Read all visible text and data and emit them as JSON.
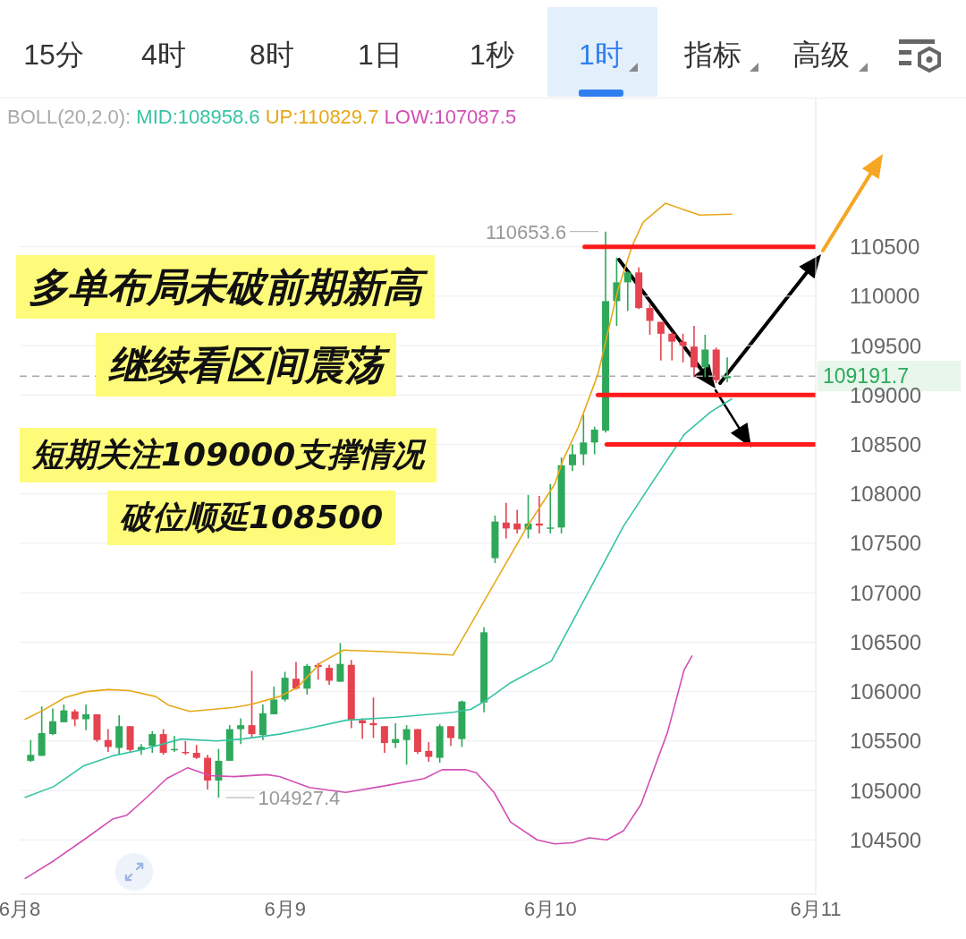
{
  "chart_data": {
    "type": "candlestick",
    "x": [
      "--06-08T01:00",
      "--06-08T02:00",
      "--06-08T03:00",
      "--06-08T04:00",
      "--06-08T05:00",
      "--06-08T06:00",
      "--06-08T07:00",
      "--06-08T08:00",
      "--06-08T09:00",
      "--06-08T10:00",
      "--06-08T11:00",
      "--06-08T12:00",
      "--06-08T13:00",
      "--06-08T14:00",
      "--06-08T15:00",
      "--06-08T16:00",
      "--06-08T17:00",
      "--06-08T18:00",
      "--06-08T19:00",
      "--06-08T20:00",
      "--06-08T21:00",
      "--06-08T22:00",
      "--06-08T23:00",
      "--06-09T00:00",
      "--06-09T01:00",
      "--06-09T02:00",
      "--06-09T03:00",
      "--06-09T04:00",
      "--06-09T05:00",
      "--06-09T06:00",
      "--06-09T07:00",
      "--06-09T08:00",
      "--06-09T09:00",
      "--06-09T10:00",
      "--06-09T11:00",
      "--06-09T12:00",
      "--06-09T13:00",
      "--06-09T14:00",
      "--06-09T15:00",
      "--06-09T16:00",
      "--06-09T18:00",
      "--06-09T19:00",
      "--06-09T20:00",
      "--06-09T21:00",
      "--06-09T22:00",
      "--06-09T23:00",
      "--06-10T00:00",
      "--06-10T01:00",
      "--06-10T02:00",
      "--06-10T03:00",
      "--06-10T04:00",
      "--06-10T05:00",
      "--06-10T06:00",
      "--06-10T07:00",
      "--06-10T08:00",
      "--06-10T09:00",
      "--06-10T10:00",
      "--06-10T11:00",
      "--06-10T12:00",
      "--06-10T13:00",
      "--06-10T14:00",
      "--06-10T15:00",
      "--06-10T16:00"
    ],
    "ohlc": [
      [
        105300,
        105510,
        105290,
        105360
      ],
      [
        105350,
        105850,
        105350,
        105580
      ],
      [
        105570,
        105830,
        105560,
        105700
      ],
      [
        105690,
        105870,
        105690,
        105810
      ],
      [
        105800,
        105820,
        105650,
        105720
      ],
      [
        105720,
        105870,
        105610,
        105770
      ],
      [
        105770,
        105770,
        105490,
        105510
      ],
      [
        105510,
        105620,
        105390,
        105440
      ],
      [
        105430,
        105760,
        105360,
        105650
      ],
      [
        105650,
        105650,
        105390,
        105410
      ],
      [
        105410,
        105470,
        105360,
        105440
      ],
      [
        105450,
        105600,
        105380,
        105570
      ],
      [
        105570,
        105620,
        105360,
        105380
      ],
      [
        105410,
        105550,
        105390,
        105420
      ],
      [
        105390,
        105500,
        105360,
        105380
      ],
      [
        105380,
        105460,
        105320,
        105330
      ],
      [
        105330,
        105360,
        105010,
        105100
      ],
      [
        105100,
        105420,
        104927.4,
        105300
      ],
      [
        105300,
        105660,
        105300,
        105620
      ],
      [
        105620,
        105730,
        105470,
        105660
      ],
      [
        105660,
        106210,
        105530,
        105570
      ],
      [
        105560,
        105870,
        105510,
        105780
      ],
      [
        105770,
        106050,
        105770,
        105920
      ],
      [
        105920,
        106200,
        105900,
        106140
      ],
      [
        106130,
        106300,
        106020,
        106030
      ],
      [
        106030,
        106280,
        105970,
        106260
      ],
      [
        106270,
        106290,
        106120,
        106250
      ],
      [
        106240,
        106270,
        106070,
        106110
      ],
      [
        106100,
        106490,
        106100,
        106280
      ],
      [
        106270,
        106320,
        105630,
        105710
      ],
      [
        105710,
        105730,
        105520,
        105680
      ],
      [
        105680,
        105940,
        105530,
        105660
      ],
      [
        105650,
        105650,
        105380,
        105480
      ],
      [
        105480,
        105680,
        105430,
        105520
      ],
      [
        105510,
        105660,
        105260,
        105620
      ],
      [
        105620,
        105620,
        105370,
        105390
      ],
      [
        105400,
        105490,
        105290,
        105340
      ],
      [
        105330,
        105670,
        105280,
        105650
      ],
      [
        105650,
        105650,
        105450,
        105530
      ],
      [
        105520,
        105910,
        105440,
        105900
      ],
      [
        105890,
        106650,
        105790,
        106600
      ],
      [
        107350,
        107780,
        107300,
        107720
      ],
      [
        107710,
        107910,
        107550,
        107650
      ],
      [
        107700,
        107840,
        107600,
        107640
      ],
      [
        107640,
        107990,
        107550,
        107700
      ],
      [
        107700,
        107980,
        107600,
        107680
      ],
      [
        107650,
        108100,
        107600,
        107660
      ],
      [
        107660,
        108370,
        107600,
        108290
      ],
      [
        108290,
        108500,
        108230,
        108400
      ],
      [
        108400,
        108800,
        108290,
        108520
      ],
      [
        108520,
        108680,
        108400,
        108650
      ],
      [
        108640,
        110653.6,
        108620,
        109950
      ],
      [
        109950,
        110390,
        109700,
        110140
      ],
      [
        110140,
        110250,
        109850,
        110240
      ],
      [
        110240,
        110290,
        109870,
        109880
      ],
      [
        109880,
        109920,
        109610,
        109750
      ],
      [
        109740,
        109740,
        109350,
        109620
      ],
      [
        109620,
        109640,
        109350,
        109540
      ],
      [
        109540,
        109620,
        109330,
        109500
      ],
      [
        109490,
        109700,
        109180,
        109280
      ],
      [
        109280,
        109610,
        109180,
        109460
      ],
      [
        109460,
        109480,
        109120,
        109150
      ],
      [
        109170,
        109380,
        109130,
        109191.7
      ]
    ],
    "series": [
      {
        "type": "line",
        "color": "#e6a817",
        "x": [
          "--06-08T00:30",
          "--06-08T02:06",
          "--06-08T04:06",
          "--06-08T06:00",
          "--06-08T08:00",
          "--06-08T09:54",
          "--06-08T12:18",
          "--06-08T13:30",
          "--06-08T15:24",
          "--06-08T17:24",
          "--06-08T19:24",
          "--06-08T20:54",
          "--06-08T23:30",
          "--06-09T01:06",
          "--06-09T03:12",
          "--06-09T05:18",
          "--06-09T10:00",
          "--06-09T15:12",
          "--06-09T21:48",
          "--06-10T00:24",
          "--06-10T01:06",
          "--06-10T02:30",
          "--06-10T04:18",
          "--06-10T06:06",
          "--06-10T07:24",
          "--06-10T08:24",
          "--06-10T10:24",
          "--06-10T13:30",
          "--06-10T16:24"
        ],
        "values": [
          105720,
          105810,
          105940,
          106000,
          106020,
          106010,
          105950,
          105860,
          105800,
          105820,
          105840,
          105870,
          105950,
          106040,
          106290,
          106420,
          106400,
          106370,
          107650,
          108100,
          108330,
          108670,
          109210,
          110060,
          110510,
          110750,
          110940,
          110820,
          110830
        ]
      },
      {
        "type": "line",
        "color": "#35c3a3",
        "x": [
          "--06-08T00:30",
          "--06-08T03:06",
          "--06-08T05:48",
          "--06-08T08:24",
          "--06-08T11:00",
          "--06-08T14:36",
          "--06-08T17:48",
          "--06-08T20:06",
          "--06-08T23:30",
          "--06-09T02:12",
          "--06-09T05:30",
          "--06-09T10:00",
          "--06-09T15:12",
          "--06-09T16:48",
          "--06-09T18:18",
          "--06-09T20:24",
          "--06-10T00:06",
          "--06-10T06:36",
          "--06-10T09:00",
          "--06-10T12:06",
          "--06-10T14:30",
          "--06-10T16:24"
        ],
        "values": [
          104930,
          105040,
          105250,
          105350,
          105410,
          105520,
          105500,
          105520,
          105570,
          105630,
          105710,
          105740,
          105790,
          105820,
          105920,
          106090,
          106310,
          107670,
          108080,
          108600,
          108830,
          108960
        ]
      },
      {
        "type": "line",
        "color": "#d24fb3",
        "x": [
          "--06-08T00:30",
          "--06-08T03:06",
          "--06-08T05:48",
          "--06-08T08:24",
          "--06-08T09:42",
          "--06-08T11:30",
          "--06-08T13:18",
          "--06-08T15:12",
          "--06-08T17:12",
          "--06-08T19:24",
          "--06-08T22:18",
          "--06-08T23:30",
          "--06-09T02:12",
          "--06-09T05:30",
          "--06-09T08:42",
          "--06-09T12:36",
          "--06-09T14:12",
          "--06-09T16:18",
          "--06-09T17:18",
          "--06-09T18:54",
          "--06-09T20:24",
          "--06-09T22:48",
          "--06-10T00:24",
          "--06-10T02:00",
          "--06-10T03:30",
          "--06-10T05:06",
          "--06-10T06:36",
          "--06-10T08:12",
          "--06-10T10:36",
          "--06-10T12:06",
          "--06-10T12:48"
        ],
        "values": [
          104110,
          104290,
          104500,
          104710,
          104750,
          104930,
          105120,
          105230,
          105150,
          105140,
          105160,
          105140,
          105030,
          104980,
          105040,
          105120,
          105210,
          105210,
          105180,
          104980,
          104680,
          104500,
          104460,
          104470,
          104520,
          104500,
          104590,
          104860,
          105590,
          106220,
          106360
        ]
      },
      {
        "type": "line",
        "color": "#ff1a1a",
        "x": [
          "--06-10T03:06",
          "--06-11T00:00"
        ],
        "values": [
          110500,
          110500
        ]
      },
      {
        "type": "line",
        "color": "#ff1a1a",
        "x": [
          "--06-10T04:18",
          "--06-11T00:00"
        ],
        "values": [
          109000,
          109000
        ]
      },
      {
        "type": "line",
        "color": "#ff1a1a",
        "x": [
          "--06-10T05:06",
          "--06-11T00:00"
        ],
        "values": [
          108500,
          108500
        ]
      }
    ],
    "xlim": [
      "--06-08",
      "--06-11"
    ],
    "xticks": [
      {
        "value": "--06-08",
        "label": "6月8"
      },
      {
        "value": "--06-09",
        "label": "6月9"
      },
      {
        "value": "--06-10",
        "label": "6月10"
      },
      {
        "value": "--06-11",
        "label": "6月11"
      }
    ],
    "ylim": [
      103950,
      112000
    ],
    "yticks": [
      104500,
      105000,
      105500,
      106000,
      106500,
      107000,
      107500,
      108000,
      108500,
      109000,
      109500,
      110000,
      110500
    ],
    "grid": "y",
    "ref_lines": [
      {
        "axis": "y",
        "value": 109191.7,
        "label": "109191.7",
        "color": "#aaaaaa",
        "line_style": "dashed"
      }
    ],
    "annotations": [
      "15分",
      "4时",
      "8时",
      "1日",
      "1秒",
      "1时",
      "指标",
      "高级",
      "BOLL(20,2.0):",
      "MID:108958.6",
      "UP:110829.7",
      "LOW:107087.5",
      "多单布局未破前期新高",
      "继续看区间震荡",
      "短期关注109000支撑情况",
      "破位顺延108500",
      {
        "text": "110653.6",
        "x": "--06-10T05:00",
        "y": 110653.6
      },
      {
        "text": "104927.4",
        "x": "--06-08T18:00",
        "y": 104927.4
      }
    ]
  }
}
